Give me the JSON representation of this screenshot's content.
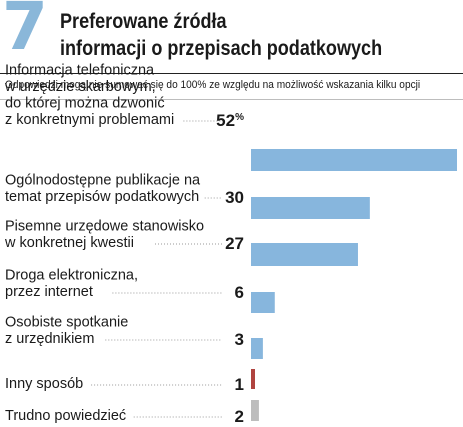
{
  "header": {
    "number": "7",
    "title_line1": "Preferowane źródła",
    "title_line2": "informacji o przepisach podatkowych",
    "subtitle": "Odpowiedzi mogą nie sumować się do 100% ze względu na możliwość wskazania kilku opcji"
  },
  "chart_data": {
    "type": "bar",
    "orientation": "horizontal",
    "unit": "%",
    "categories": [
      [
        "Informacja telefoniczna",
        "w urzędzie skarbowym,",
        "do której można dzwonić",
        "z konkretnymi problemami"
      ],
      [
        "Ogólnodostępne publikacje na",
        "temat przepisów podatkowych"
      ],
      [
        "Pisemne urzędowe stanowisko",
        "w konkretnej kwestii"
      ],
      [
        "Droga elektroniczna,",
        "przez internet"
      ],
      [
        "Osobiste spotkanie",
        "z urzędnikiem"
      ],
      [
        "Inny sposób"
      ],
      [
        "Trudno powiedzieć"
      ]
    ],
    "values": [
      52,
      30,
      27,
      6,
      3,
      1,
      2
    ],
    "value_labels": [
      "52",
      "30",
      "27",
      "6",
      "3",
      "1",
      "2"
    ],
    "first_value_suffix": "%",
    "bar_colors": [
      "#87b6dd",
      "#87b6dd",
      "#87b6dd",
      "#87b6dd",
      "#87b6dd",
      "#b0443f",
      "#bdbdbd"
    ],
    "xlim": [
      0,
      52
    ],
    "legend": false,
    "grid": false
  }
}
